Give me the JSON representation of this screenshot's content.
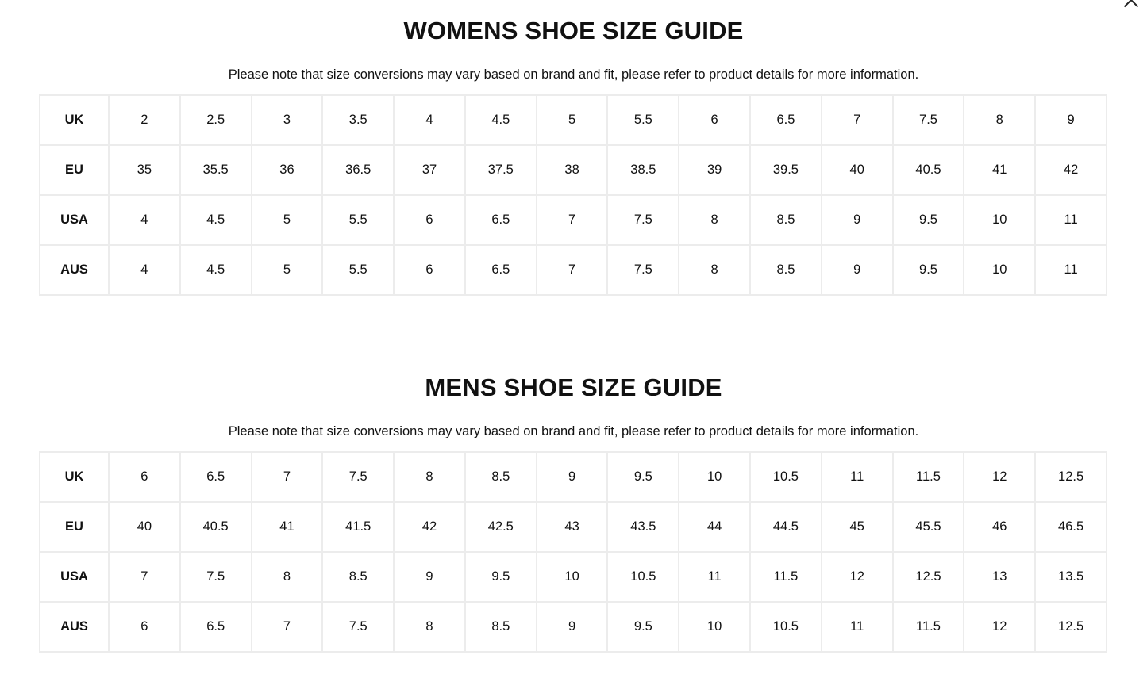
{
  "close_icon": "close-icon",
  "womens": {
    "title": "WOMENS SHOE SIZE GUIDE",
    "note": "Please note that size conversions may vary based on brand and fit, please refer to product details for more information.",
    "rows": [
      {
        "label": "UK",
        "values": [
          "2",
          "2.5",
          "3",
          "3.5",
          "4",
          "4.5",
          "5",
          "5.5",
          "6",
          "6.5",
          "7",
          "7.5",
          "8",
          "9"
        ]
      },
      {
        "label": "EU",
        "values": [
          "35",
          "35.5",
          "36",
          "36.5",
          "37",
          "37.5",
          "38",
          "38.5",
          "39",
          "39.5",
          "40",
          "40.5",
          "41",
          "42"
        ]
      },
      {
        "label": "USA",
        "values": [
          "4",
          "4.5",
          "5",
          "5.5",
          "6",
          "6.5",
          "7",
          "7.5",
          "8",
          "8.5",
          "9",
          "9.5",
          "10",
          "11"
        ]
      },
      {
        "label": "AUS",
        "values": [
          "4",
          "4.5",
          "5",
          "5.5",
          "6",
          "6.5",
          "7",
          "7.5",
          "8",
          "8.5",
          "9",
          "9.5",
          "10",
          "11"
        ]
      }
    ]
  },
  "mens": {
    "title": "MENS SHOE SIZE GUIDE",
    "note": "Please note that size conversions may vary based on brand and fit, please refer to product details for more information.",
    "rows": [
      {
        "label": "UK",
        "values": [
          "6",
          "6.5",
          "7",
          "7.5",
          "8",
          "8.5",
          "9",
          "9.5",
          "10",
          "10.5",
          "11",
          "11.5",
          "12",
          "12.5"
        ]
      },
      {
        "label": "EU",
        "values": [
          "40",
          "40.5",
          "41",
          "41.5",
          "42",
          "42.5",
          "43",
          "43.5",
          "44",
          "44.5",
          "45",
          "45.5",
          "46",
          "46.5"
        ]
      },
      {
        "label": "USA",
        "values": [
          "7",
          "7.5",
          "8",
          "8.5",
          "9",
          "9.5",
          "10",
          "10.5",
          "11",
          "11.5",
          "12",
          "12.5",
          "13",
          "13.5"
        ]
      },
      {
        "label": "AUS",
        "values": [
          "6",
          "6.5",
          "7",
          "7.5",
          "8",
          "8.5",
          "9",
          "9.5",
          "10",
          "10.5",
          "11",
          "11.5",
          "12",
          "12.5"
        ]
      }
    ]
  }
}
